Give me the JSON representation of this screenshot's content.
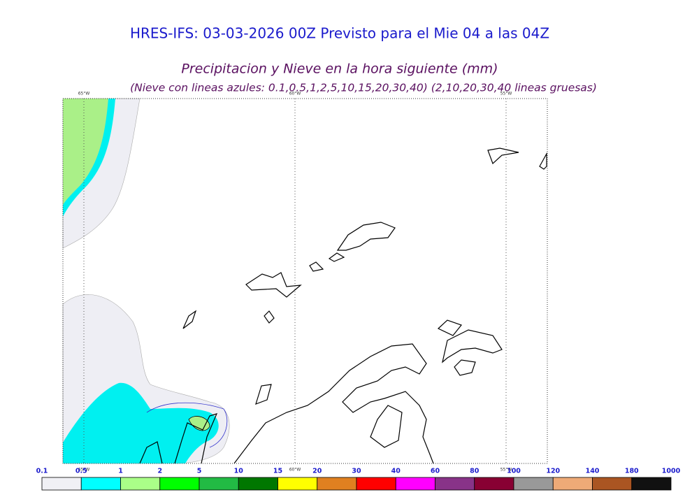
{
  "header": {
    "title": "HRES-IFS: 03-03-2026 00Z Previsto para el Mie 04 a las 04Z",
    "subtitle": "Precipitacion y Nieve en la hora siguiente (mm)",
    "note": "(Nieve con lineas azules: 0.1,0.5,1,2,5,10,15,20,30,40)  (2,10,20,30,40 lineas gruesas)"
  },
  "map": {
    "top_lon_labels": [
      "65°W",
      "60°W",
      "55°W"
    ],
    "bottom_lon_labels": [
      "65°W",
      "60°W",
      "55°W"
    ]
  },
  "colorbar": {
    "labels": [
      "0.1",
      "0.5",
      "1",
      "2",
      "5",
      "10",
      "15",
      "20",
      "30",
      "40",
      "60",
      "80",
      "100",
      "120",
      "140",
      "180",
      "1000"
    ],
    "colors": [
      "#f0f0f5",
      "#00ffff",
      "#aaff88",
      "#00ff00",
      "#22bb44",
      "#007700",
      "#ffff00",
      "#e08020",
      "#ff0000",
      "#ff00ff",
      "#883388",
      "#880033",
      "#999999",
      "#eeaa77",
      "#aa5522",
      "#111111"
    ]
  }
}
